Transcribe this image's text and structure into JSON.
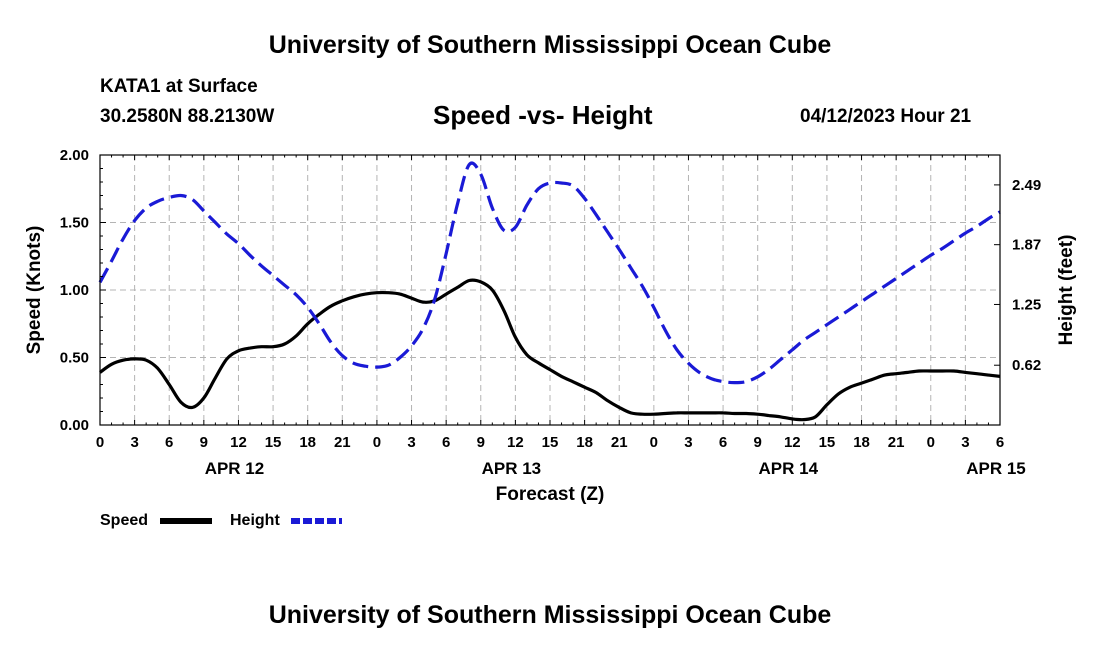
{
  "header": {
    "title": "University of Southern Mississippi Ocean Cube",
    "station": "KATA1 at Surface",
    "coords": "30.2580N  88.2130W",
    "subtitle": "Speed -vs- Height",
    "datetime": "04/12/2023 Hour 21"
  },
  "footer": {
    "title": "University of Southern Mississippi Ocean Cube"
  },
  "chart_data": {
    "type": "line",
    "title": "Speed -vs- Height",
    "xlabel": "Forecast (Z)",
    "ylabel_left": "Speed (Knots)",
    "ylabel_right": "Height (feet)",
    "x_range": [
      0,
      78
    ],
    "ylim_left": [
      0,
      2.0
    ],
    "ylim_right": [
      0.0,
      2.8
    ],
    "left_ticks": [
      "0.00",
      "0.50",
      "1.00",
      "1.50",
      "2.00"
    ],
    "right_ticks": [
      "0.62",
      "1.25",
      "1.87",
      "2.49"
    ],
    "right_tick_values": [
      0.62,
      1.25,
      1.87,
      2.49
    ],
    "x_ticks": [
      "0",
      "3",
      "6",
      "9",
      "12",
      "15",
      "18",
      "21",
      "0",
      "3",
      "6",
      "9",
      "12",
      "15",
      "18",
      "21",
      "0",
      "3",
      "6",
      "9",
      "12",
      "15",
      "18",
      "21",
      "0",
      "3",
      "6"
    ],
    "date_labels": [
      {
        "label": "APR 12",
        "x": 12
      },
      {
        "label": "APR 13",
        "x": 36
      },
      {
        "label": "APR 14",
        "x": 60
      },
      {
        "label": "APR 15",
        "x": 78
      }
    ],
    "grid": true,
    "legend": [
      {
        "name": "Speed",
        "color": "#000000",
        "style": "solid"
      },
      {
        "name": "Height",
        "color": "#1a1ad6",
        "style": "dashed"
      }
    ],
    "series": [
      {
        "name": "Speed",
        "axis": "left",
        "color": "#000000",
        "style": "solid",
        "x": [
          0,
          1,
          2,
          3,
          4,
          5,
          6,
          7,
          8,
          9,
          10,
          11,
          12,
          13,
          14,
          15,
          16,
          17,
          18,
          19,
          20,
          21,
          22,
          23,
          24,
          25,
          26,
          27,
          28,
          29,
          30,
          31,
          32,
          33,
          34,
          35,
          36,
          37,
          38,
          39,
          40,
          41,
          42,
          43,
          44,
          45,
          46,
          47,
          48,
          49,
          50,
          51,
          52,
          53,
          54,
          55,
          56,
          57,
          58,
          59,
          60,
          61,
          62,
          63,
          64,
          65,
          66,
          67,
          68,
          69,
          70,
          71,
          72,
          73,
          74,
          75,
          76,
          77,
          78
        ],
        "values": [
          0.39,
          0.45,
          0.48,
          0.49,
          0.48,
          0.42,
          0.3,
          0.17,
          0.13,
          0.2,
          0.35,
          0.49,
          0.55,
          0.57,
          0.58,
          0.58,
          0.6,
          0.66,
          0.75,
          0.82,
          0.88,
          0.92,
          0.95,
          0.97,
          0.98,
          0.98,
          0.97,
          0.94,
          0.91,
          0.92,
          0.97,
          1.02,
          1.07,
          1.06,
          1.0,
          0.85,
          0.65,
          0.52,
          0.46,
          0.41,
          0.36,
          0.32,
          0.28,
          0.24,
          0.18,
          0.13,
          0.09,
          0.08,
          0.08,
          0.085,
          0.09,
          0.09,
          0.09,
          0.09,
          0.09,
          0.085,
          0.085,
          0.08,
          0.07,
          0.06,
          0.045,
          0.04,
          0.06,
          0.15,
          0.23,
          0.28,
          0.31,
          0.34,
          0.37,
          0.38,
          0.39,
          0.4,
          0.4,
          0.4,
          0.4,
          0.39,
          0.38,
          0.37,
          0.36
        ]
      },
      {
        "name": "Height",
        "axis": "right",
        "color": "#1a1ad6",
        "style": "dashed",
        "x": [
          0,
          1,
          2,
          3,
          4,
          5,
          6,
          7,
          8,
          9,
          10,
          11,
          12,
          13,
          14,
          15,
          16,
          17,
          18,
          19,
          20,
          21,
          22,
          23,
          24,
          25,
          26,
          27,
          28,
          29,
          30,
          31,
          32,
          33,
          34,
          35,
          36,
          37,
          38,
          39,
          40,
          41,
          42,
          43,
          44,
          45,
          46,
          47,
          48,
          49,
          50,
          51,
          52,
          53,
          54,
          55,
          56,
          57,
          58,
          59,
          60,
          61,
          62,
          63,
          64,
          65,
          66,
          67,
          68,
          69,
          70,
          71,
          72,
          73,
          74,
          75,
          76,
          77,
          78
        ],
        "values": [
          1.48,
          1.7,
          1.93,
          2.12,
          2.25,
          2.32,
          2.36,
          2.38,
          2.34,
          2.22,
          2.1,
          1.98,
          1.88,
          1.76,
          1.65,
          1.55,
          1.45,
          1.35,
          1.22,
          1.05,
          0.86,
          0.72,
          0.64,
          0.61,
          0.6,
          0.62,
          0.7,
          0.82,
          1.0,
          1.3,
          1.78,
          2.3,
          2.7,
          2.6,
          2.25,
          2.02,
          2.05,
          2.28,
          2.45,
          2.51,
          2.51,
          2.48,
          2.35,
          2.18,
          2.0,
          1.82,
          1.63,
          1.44,
          1.22,
          0.98,
          0.78,
          0.64,
          0.54,
          0.48,
          0.45,
          0.44,
          0.45,
          0.5,
          0.58,
          0.68,
          0.78,
          0.88,
          0.96,
          1.04,
          1.12,
          1.2,
          1.28,
          1.36,
          1.44,
          1.52,
          1.6,
          1.68,
          1.76,
          1.83,
          1.91,
          1.99,
          2.06,
          2.14,
          2.21
        ]
      }
    ]
  }
}
